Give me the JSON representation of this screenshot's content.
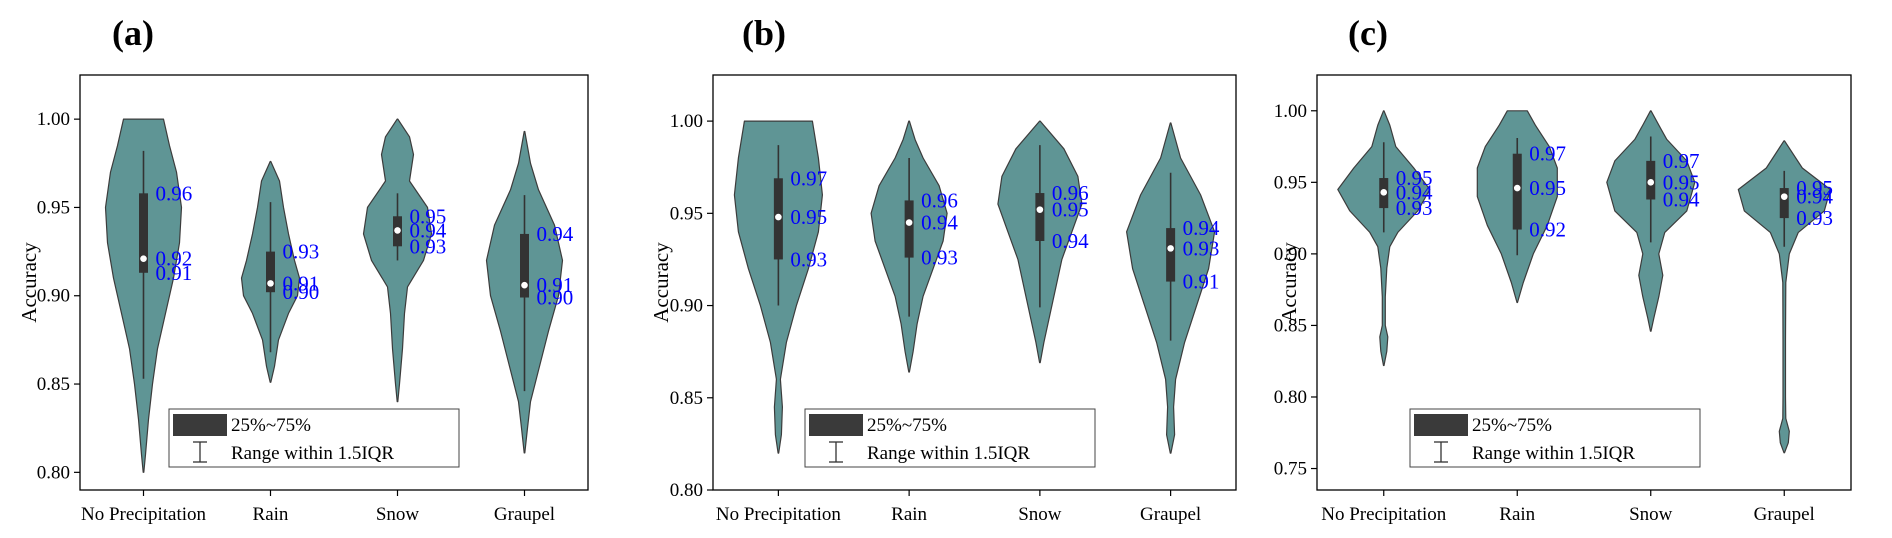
{
  "style": {
    "violin_fill": "#5f9595",
    "violin_stroke": "#3c3c3c",
    "box_fill": "#333333",
    "annotation_color": "#0000ff"
  },
  "legend": {
    "box_label": "25%~75%",
    "whisker_label": "Range within 1.5IQR"
  },
  "chart_data": [
    {
      "type": "violin",
      "panel_label": "(a)",
      "ylabel": "Accuracy",
      "categories": [
        "No Precipitation",
        "Rain",
        "Snow",
        "Graupel"
      ],
      "ylim": [
        0.79,
        1.025
      ],
      "yticks": [
        "0.80",
        "0.85",
        "0.90",
        "0.95",
        "1.00"
      ],
      "groups": [
        {
          "q1": 0.913,
          "median": 0.921,
          "q3": 0.958,
          "whisker_low": 0.853,
          "whisker_high": 0.982,
          "min": 0.8,
          "max": 1.0,
          "labels": [
            "0.96",
            "0.92",
            "0.91"
          ],
          "profile": [
            [
              0.8,
              0.3
            ],
            [
              0.81,
              2
            ],
            [
              0.83,
              5
            ],
            [
              0.85,
              9
            ],
            [
              0.87,
              14
            ],
            [
              0.89,
              22
            ],
            [
              0.91,
              30
            ],
            [
              0.93,
              36
            ],
            [
              0.95,
              38
            ],
            [
              0.97,
              33
            ],
            [
              0.985,
              26
            ],
            [
              1.0,
              20
            ]
          ]
        },
        {
          "q1": 0.902,
          "median": 0.907,
          "q3": 0.925,
          "whisker_low": 0.868,
          "whisker_high": 0.953,
          "min": 0.851,
          "max": 0.976,
          "labels": [
            "0.93",
            "0.91",
            "0.90"
          ],
          "profile": [
            [
              0.851,
              0.3
            ],
            [
              0.86,
              4
            ],
            [
              0.875,
              8
            ],
            [
              0.89,
              18
            ],
            [
              0.9,
              27
            ],
            [
              0.91,
              29
            ],
            [
              0.92,
              24
            ],
            [
              0.935,
              18
            ],
            [
              0.95,
              13
            ],
            [
              0.965,
              9
            ],
            [
              0.976,
              0.3
            ]
          ]
        },
        {
          "q1": 0.928,
          "median": 0.937,
          "q3": 0.945,
          "whisker_low": 0.92,
          "whisker_high": 0.958,
          "min": 0.84,
          "max": 1.0,
          "labels": [
            "0.95",
            "0.94",
            "0.93"
          ],
          "profile": [
            [
              0.84,
              0.3
            ],
            [
              0.85,
              2
            ],
            [
              0.87,
              5
            ],
            [
              0.89,
              7
            ],
            [
              0.905,
              10
            ],
            [
              0.92,
              26
            ],
            [
              0.935,
              34
            ],
            [
              0.95,
              30
            ],
            [
              0.965,
              12
            ],
            [
              0.98,
              16
            ],
            [
              0.99,
              12
            ],
            [
              1.0,
              0.3
            ]
          ]
        },
        {
          "q1": 0.899,
          "median": 0.906,
          "q3": 0.935,
          "whisker_low": 0.846,
          "whisker_high": 0.957,
          "min": 0.811,
          "max": 0.993,
          "labels": [
            "0.94",
            "0.91",
            "0.90"
          ],
          "profile": [
            [
              0.811,
              0.3
            ],
            [
              0.825,
              3
            ],
            [
              0.84,
              6
            ],
            [
              0.86,
              15
            ],
            [
              0.88,
              24
            ],
            [
              0.9,
              34
            ],
            [
              0.92,
              38
            ],
            [
              0.94,
              30
            ],
            [
              0.96,
              14
            ],
            [
              0.975,
              6
            ],
            [
              0.993,
              0.3
            ]
          ]
        }
      ]
    },
    {
      "type": "violin",
      "panel_label": "(b)",
      "ylabel": "Accuracy",
      "categories": [
        "No Precipitation",
        "Rain",
        "Snow",
        "Graupel"
      ],
      "ylim": [
        0.8,
        1.025
      ],
      "yticks": [
        "0.80",
        "0.85",
        "0.90",
        "0.95",
        "1.00"
      ],
      "groups": [
        {
          "q1": 0.925,
          "median": 0.948,
          "q3": 0.969,
          "whisker_low": 0.9,
          "whisker_high": 0.987,
          "min": 0.82,
          "max": 1.0,
          "labels": [
            "0.97",
            "0.95",
            "0.93"
          ],
          "profile": [
            [
              0.82,
              0.3
            ],
            [
              0.83,
              3
            ],
            [
              0.845,
              4
            ],
            [
              0.86,
              2
            ],
            [
              0.88,
              8
            ],
            [
              0.9,
              18
            ],
            [
              0.92,
              30
            ],
            [
              0.94,
              40
            ],
            [
              0.96,
              44
            ],
            [
              0.98,
              40
            ],
            [
              1.0,
              34
            ]
          ]
        },
        {
          "q1": 0.926,
          "median": 0.945,
          "q3": 0.957,
          "whisker_low": 0.894,
          "whisker_high": 0.98,
          "min": 0.864,
          "max": 1.0,
          "labels": [
            "0.96",
            "0.94",
            "0.93"
          ],
          "profile": [
            [
              0.864,
              0.3
            ],
            [
              0.875,
              4
            ],
            [
              0.89,
              8
            ],
            [
              0.905,
              14
            ],
            [
              0.92,
              24
            ],
            [
              0.935,
              34
            ],
            [
              0.95,
              38
            ],
            [
              0.965,
              30
            ],
            [
              0.98,
              14
            ],
            [
              0.99,
              6
            ],
            [
              1.0,
              0.3
            ]
          ]
        },
        {
          "q1": 0.935,
          "median": 0.952,
          "q3": 0.961,
          "whisker_low": 0.899,
          "whisker_high": 0.987,
          "min": 0.869,
          "max": 1.0,
          "labels": [
            "0.96",
            "0.95",
            "0.94"
          ],
          "profile": [
            [
              0.869,
              0.3
            ],
            [
              0.88,
              4
            ],
            [
              0.895,
              10
            ],
            [
              0.91,
              16
            ],
            [
              0.925,
              22
            ],
            [
              0.94,
              32
            ],
            [
              0.955,
              42
            ],
            [
              0.97,
              38
            ],
            [
              0.985,
              24
            ],
            [
              1.0,
              0.3
            ]
          ]
        },
        {
          "q1": 0.913,
          "median": 0.931,
          "q3": 0.942,
          "whisker_low": 0.881,
          "whisker_high": 0.972,
          "min": 0.82,
          "max": 0.999,
          "labels": [
            "0.94",
            "0.93",
            "0.91"
          ],
          "profile": [
            [
              0.82,
              0.3
            ],
            [
              0.83,
              4
            ],
            [
              0.845,
              3
            ],
            [
              0.86,
              5
            ],
            [
              0.88,
              14
            ],
            [
              0.9,
              26
            ],
            [
              0.92,
              38
            ],
            [
              0.94,
              44
            ],
            [
              0.96,
              30
            ],
            [
              0.98,
              10
            ],
            [
              0.999,
              0.3
            ]
          ]
        }
      ]
    },
    {
      "type": "violin",
      "panel_label": "(c)",
      "ylabel": "Accuracy",
      "categories": [
        "No Precipitation",
        "Rain",
        "Snow",
        "Graupel"
      ],
      "ylim": [
        0.735,
        1.025
      ],
      "yticks": [
        "0.75",
        "0.80",
        "0.85",
        "0.90",
        "0.95",
        "1.00"
      ],
      "groups": [
        {
          "q1": 0.932,
          "median": 0.943,
          "q3": 0.953,
          "whisker_low": 0.915,
          "whisker_high": 0.978,
          "min": 0.822,
          "max": 1.0,
          "labels": [
            "0.95",
            "0.94",
            "0.93"
          ],
          "profile": [
            [
              0.822,
              0.3
            ],
            [
              0.832,
              3
            ],
            [
              0.842,
              4
            ],
            [
              0.85,
              1.5
            ],
            [
              0.87,
              1.5
            ],
            [
              0.89,
              3
            ],
            [
              0.905,
              6
            ],
            [
              0.915,
              14
            ],
            [
              0.93,
              34
            ],
            [
              0.945,
              46
            ],
            [
              0.96,
              30
            ],
            [
              0.975,
              12
            ],
            [
              0.99,
              6
            ],
            [
              1.0,
              0.3
            ]
          ]
        },
        {
          "q1": 0.917,
          "median": 0.946,
          "q3": 0.97,
          "whisker_low": 0.899,
          "whisker_high": 0.981,
          "min": 0.866,
          "max": 1.0,
          "labels": [
            "0.97",
            "0.95",
            "0.92"
          ],
          "profile": [
            [
              0.866,
              0.3
            ],
            [
              0.88,
              6
            ],
            [
              0.9,
              16
            ],
            [
              0.92,
              30
            ],
            [
              0.94,
              40
            ],
            [
              0.96,
              40
            ],
            [
              0.975,
              32
            ],
            [
              0.99,
              18
            ],
            [
              1.0,
              10
            ]
          ]
        },
        {
          "q1": 0.938,
          "median": 0.95,
          "q3": 0.965,
          "whisker_low": 0.908,
          "whisker_high": 0.982,
          "min": 0.846,
          "max": 1.0,
          "labels": [
            "0.97",
            "0.95",
            "0.94"
          ],
          "profile": [
            [
              0.846,
              0.3
            ],
            [
              0.855,
              3
            ],
            [
              0.87,
              8
            ],
            [
              0.885,
              12
            ],
            [
              0.9,
              8
            ],
            [
              0.915,
              14
            ],
            [
              0.93,
              36
            ],
            [
              0.95,
              44
            ],
            [
              0.965,
              36
            ],
            [
              0.98,
              16
            ],
            [
              0.99,
              8
            ],
            [
              1.0,
              0.3
            ]
          ]
        },
        {
          "q1": 0.925,
          "median": 0.94,
          "q3": 0.946,
          "whisker_low": 0.905,
          "whisker_high": 0.958,
          "min": 0.761,
          "max": 0.979,
          "labels": [
            "0.95",
            "0.94",
            "0.93"
          ],
          "profile": [
            [
              0.761,
              0.3
            ],
            [
              0.768,
              4
            ],
            [
              0.776,
              5
            ],
            [
              0.785,
              1.5
            ],
            [
              0.8,
              1.2
            ],
            [
              0.84,
              1.2
            ],
            [
              0.88,
              1.5
            ],
            [
              0.9,
              5
            ],
            [
              0.915,
              14
            ],
            [
              0.93,
              40
            ],
            [
              0.945,
              46
            ],
            [
              0.96,
              18
            ],
            [
              0.979,
              0.3
            ]
          ]
        }
      ]
    }
  ]
}
